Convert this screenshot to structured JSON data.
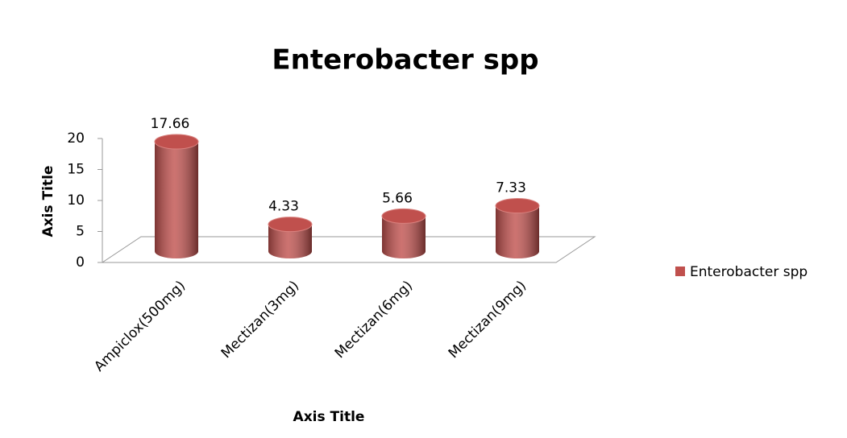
{
  "chart_data": {
    "type": "bar",
    "title": "Enterobacter spp",
    "x_label": "Axis Title",
    "y_label": "Axis Title",
    "categories": [
      "Ampiclox(500mg)",
      "Mectizan(3mg)",
      "Mectizan(6mg)",
      "Mectizan(9mg)"
    ],
    "series": [
      {
        "name": "Enterobacter spp",
        "color": "#c0504d",
        "values": [
          17.66,
          4.33,
          5.66,
          7.33
        ]
      }
    ],
    "ylim": [
      0,
      20
    ],
    "yticks": [
      0,
      5,
      10,
      15,
      20
    ],
    "legend": "right"
  }
}
